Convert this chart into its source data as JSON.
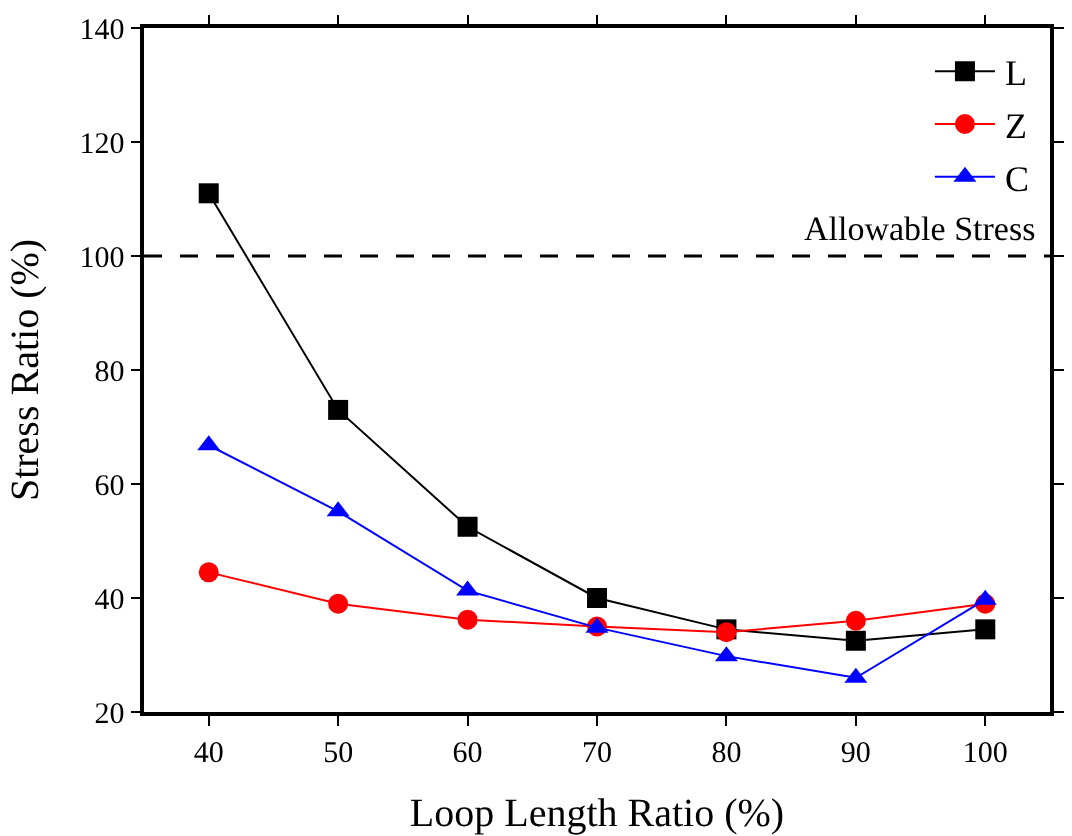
{
  "chart_data": {
    "type": "line",
    "xlabel": "Loop Length Ratio (%)",
    "ylabel": "Stress Ratio (%)",
    "x": [
      40,
      50,
      60,
      70,
      80,
      90,
      100
    ],
    "series": [
      {
        "name": "L",
        "color": "#000000",
        "marker": "square",
        "values": [
          111,
          73,
          52.5,
          40,
          34.5,
          32.5,
          34.5
        ]
      },
      {
        "name": "Z",
        "color": "#ff0000",
        "marker": "circle",
        "values": [
          44.5,
          39,
          36.2,
          35,
          34,
          36,
          39
        ]
      },
      {
        "name": "C",
        "color": "#0000ff",
        "marker": "triangle",
        "values": [
          66.8,
          55.2,
          41.3,
          34.8,
          29.8,
          26,
          39.7
        ]
      }
    ],
    "xlim": [
      35,
      105
    ],
    "xticks": [
      40,
      50,
      60,
      70,
      80,
      90,
      100
    ],
    "ylim": [
      20,
      140
    ],
    "yticks": [
      20,
      40,
      60,
      80,
      100,
      120,
      140
    ],
    "ref_lines": [
      {
        "axis": "y",
        "value": 100,
        "label": "Allowable Stress",
        "color": "#000000",
        "line_style": "dashed"
      }
    ],
    "legend": "top right",
    "grid": false,
    "line_style": "solid"
  }
}
